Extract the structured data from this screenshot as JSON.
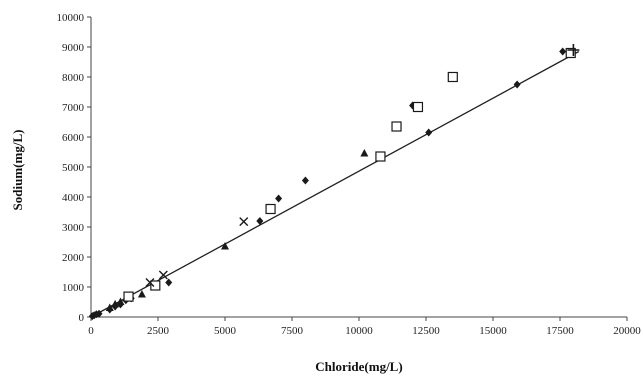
{
  "chart_data": {
    "type": "scatter",
    "title": "",
    "xlabel": "Chloride(mg/L)",
    "ylabel": "Sodium(mg/L)",
    "xlim": [
      0,
      20000
    ],
    "ylim": [
      0,
      10000
    ],
    "x_ticks": [
      0,
      2500,
      5000,
      7500,
      10000,
      12500,
      15000,
      17500,
      20000
    ],
    "y_ticks": [
      0,
      1000,
      2000,
      3000,
      4000,
      5000,
      6000,
      7000,
      8000,
      9000,
      10000
    ],
    "grid": false,
    "legend": "none",
    "series": [
      {
        "marker": "diamond",
        "points": [
          [
            50,
            30
          ],
          [
            120,
            60
          ],
          [
            200,
            90
          ],
          [
            300,
            110
          ],
          [
            700,
            250
          ],
          [
            900,
            350
          ],
          [
            1100,
            420
          ],
          [
            1300,
            560
          ],
          [
            1500,
            620
          ],
          [
            2900,
            1150
          ],
          [
            6300,
            3200
          ],
          [
            7000,
            3950
          ],
          [
            8000,
            4550
          ],
          [
            12000,
            7050
          ],
          [
            12600,
            6150
          ],
          [
            15900,
            7750
          ],
          [
            17600,
            8850
          ]
        ]
      },
      {
        "marker": "triangle",
        "points": [
          [
            700,
            300
          ],
          [
            900,
            420
          ],
          [
            1100,
            500
          ],
          [
            1900,
            750
          ],
          [
            5000,
            2350
          ],
          [
            10200,
            5450
          ]
        ]
      },
      {
        "marker": "square",
        "points": [
          [
            1400,
            680
          ],
          [
            2400,
            1050
          ],
          [
            6700,
            3600
          ],
          [
            10800,
            5350
          ],
          [
            11400,
            6350
          ],
          [
            12200,
            7000
          ],
          [
            13500,
            8000
          ],
          [
            17900,
            8800
          ]
        ]
      },
      {
        "marker": "x",
        "points": [
          [
            2200,
            1150
          ],
          [
            2700,
            1400
          ],
          [
            5700,
            3180
          ]
        ]
      },
      {
        "marker": "plus",
        "points": [
          [
            18000,
            8900
          ]
        ]
      }
    ],
    "trendline": {
      "x": [
        0,
        18200
      ],
      "y": [
        0,
        8850
      ]
    }
  },
  "colors": {
    "axis": "#444444",
    "marker": "#1a1a1a",
    "trendline": "#222222"
  }
}
